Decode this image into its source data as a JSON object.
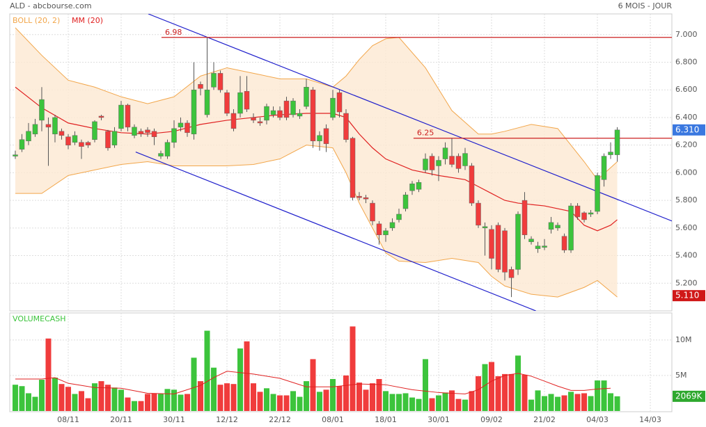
{
  "header": {
    "left": "ALD - abcbourse.com",
    "right": "6 MOIS - JOUR"
  },
  "chart_data": {
    "type": "candlestick",
    "x": [
      0,
      1,
      2,
      3,
      4,
      5,
      6,
      7,
      8,
      9,
      10,
      11,
      12,
      13,
      14,
      15,
      16,
      17,
      18,
      19,
      20,
      21,
      22,
      23,
      24,
      25,
      26,
      27,
      28,
      29,
      30,
      31,
      32,
      33,
      34,
      35,
      36,
      37,
      38,
      39,
      40,
      41,
      42,
      43,
      44,
      45,
      46,
      47,
      48,
      49,
      50,
      51,
      52,
      53,
      54,
      55,
      56,
      57,
      58,
      59,
      60,
      61,
      62,
      63,
      64,
      65,
      66,
      67,
      68,
      69,
      70,
      71,
      72,
      73,
      74,
      75,
      76,
      77,
      78,
      79,
      80,
      81,
      82,
      83,
      84,
      85,
      86,
      87,
      88,
      89,
      90,
      91
    ],
    "open": [
      6.12,
      6.17,
      6.23,
      6.28,
      6.38,
      6.35,
      6.28,
      6.3,
      6.26,
      6.22,
      6.22,
      6.22,
      6.24,
      6.41,
      6.3,
      6.2,
      6.32,
      6.49,
      6.27,
      6.3,
      6.31,
      6.3,
      6.12,
      6.12,
      6.22,
      6.33,
      6.36,
      6.28,
      6.64,
      6.42,
      6.62,
      6.72,
      6.58,
      6.43,
      6.43,
      6.59,
      6.4,
      6.37,
      6.38,
      6.42,
      6.45,
      6.52,
      6.42,
      6.41,
      6.48,
      6.6,
      6.23,
      6.32,
      6.4,
      6.58,
      6.43,
      6.25,
      5.83,
      5.82,
      5.78,
      5.63,
      5.55,
      5.6,
      5.66,
      5.74,
      5.87,
      5.88,
      6.02,
      6.12,
      6.05,
      6.1,
      6.12,
      6.12,
      6.05,
      6.05,
      5.78,
      5.6,
      5.59,
      5.62,
      5.58,
      5.3,
      5.3,
      5.8,
      5.5,
      5.45,
      5.46,
      5.59,
      5.6,
      5.54,
      5.44,
      5.76,
      5.71,
      5.7,
      5.72,
      5.95,
      6.13,
      6.13
    ],
    "high": [
      6.16,
      6.28,
      6.36,
      6.39,
      6.62,
      6.4,
      6.42,
      6.32,
      6.28,
      6.3,
      6.24,
      6.23,
      6.38,
      6.42,
      6.31,
      6.33,
      6.52,
      6.5,
      6.35,
      6.32,
      6.33,
      6.32,
      6.16,
      6.24,
      6.38,
      6.4,
      6.38,
      6.8,
      6.66,
      6.98,
      6.8,
      6.74,
      6.6,
      6.46,
      6.7,
      6.7,
      6.43,
      6.4,
      6.5,
      6.48,
      6.48,
      6.55,
      6.54,
      6.46,
      6.68,
      6.62,
      6.3,
      6.35,
      6.6,
      6.6,
      6.46,
      6.26,
      5.86,
      5.84,
      5.8,
      5.65,
      5.6,
      5.67,
      5.74,
      5.86,
      5.94,
      5.95,
      6.14,
      6.14,
      6.12,
      6.22,
      6.25,
      6.14,
      6.18,
      6.07,
      5.8,
      5.64,
      5.62,
      5.64,
      5.6,
      5.32,
      5.72,
      5.86,
      5.54,
      5.5,
      5.52,
      5.68,
      5.64,
      5.56,
      5.78,
      5.78,
      5.72,
      5.73,
      6.0,
      6.14,
      6.22,
      6.33
    ],
    "low": [
      6.1,
      6.15,
      6.2,
      6.26,
      6.3,
      6.05,
      6.22,
      6.24,
      6.17,
      6.2,
      6.1,
      6.18,
      6.22,
      6.38,
      6.16,
      6.18,
      6.3,
      6.3,
      6.25,
      6.26,
      6.26,
      6.2,
      6.1,
      6.1,
      6.18,
      6.3,
      6.26,
      6.24,
      6.56,
      6.4,
      6.6,
      6.58,
      6.41,
      6.3,
      6.4,
      6.44,
      6.36,
      6.34,
      6.35,
      6.4,
      6.38,
      6.38,
      6.4,
      6.39,
      6.46,
      6.18,
      6.16,
      6.15,
      6.38,
      6.4,
      6.22,
      5.8,
      5.8,
      5.78,
      5.62,
      5.48,
      5.5,
      5.58,
      5.64,
      5.72,
      5.84,
      5.86,
      6.0,
      5.98,
      5.94,
      6.06,
      6.04,
      6.0,
      6.02,
      5.76,
      5.6,
      5.4,
      5.3,
      5.28,
      5.22,
      5.1,
      5.26,
      5.52,
      5.48,
      5.42,
      5.44,
      5.56,
      5.58,
      5.42,
      5.42,
      5.66,
      5.64,
      5.68,
      5.7,
      5.9,
      6.1,
      6.08
    ],
    "close": [
      6.13,
      6.24,
      6.3,
      6.35,
      6.53,
      6.33,
      6.4,
      6.27,
      6.2,
      6.27,
      6.19,
      6.2,
      6.37,
      6.4,
      6.18,
      6.3,
      6.49,
      6.33,
      6.33,
      6.28,
      6.29,
      6.26,
      6.14,
      6.22,
      6.32,
      6.36,
      6.29,
      6.6,
      6.61,
      6.6,
      6.72,
      6.6,
      6.43,
      6.32,
      6.58,
      6.46,
      6.38,
      6.36,
      6.48,
      6.45,
      6.4,
      6.4,
      6.52,
      6.43,
      6.62,
      6.23,
      6.27,
      6.21,
      6.54,
      6.44,
      6.24,
      5.82,
      5.82,
      5.81,
      5.65,
      5.55,
      5.58,
      5.64,
      5.7,
      5.84,
      5.92,
      5.93,
      6.1,
      6.02,
      6.09,
      6.18,
      6.06,
      6.03,
      6.14,
      5.78,
      5.62,
      5.61,
      5.38,
      5.3,
      5.28,
      5.24,
      5.7,
      5.55,
      5.52,
      5.47,
      5.47,
      5.64,
      5.62,
      5.44,
      5.76,
      5.68,
      5.66,
      5.71,
      5.98,
      6.12,
      6.15,
      6.31
    ],
    "up_color": "#3cc43c",
    "down_color": "#f03c3c",
    "xlim": [
      -0.84,
      99.26
    ],
    "xticks": [
      {
        "value": 8,
        "label": "08/11"
      },
      {
        "value": 16,
        "label": "20/11"
      },
      {
        "value": 24,
        "label": "30/11"
      },
      {
        "value": 32,
        "label": "12/12"
      },
      {
        "value": 40,
        "label": "22/12"
      },
      {
        "value": 48,
        "label": "08/01"
      },
      {
        "value": 56,
        "label": "18/01"
      },
      {
        "value": 64,
        "label": "30/01"
      },
      {
        "value": 72,
        "label": "09/02"
      },
      {
        "value": 80,
        "label": "21/02"
      },
      {
        "value": 88,
        "label": "04/03"
      },
      {
        "value": 96,
        "label": "14/03"
      }
    ],
    "ylim": [
      5.0,
      7.15
    ],
    "yticks": [
      {
        "value": 5.2,
        "label": "5.200"
      },
      {
        "value": 5.4,
        "label": "5.400"
      },
      {
        "value": 5.6,
        "label": "5.600"
      },
      {
        "value": 5.8,
        "label": "5.800"
      },
      {
        "value": 6.0,
        "label": "6.000"
      },
      {
        "value": 6.2,
        "label": "6.200"
      },
      {
        "value": 6.4,
        "label": "6.400"
      },
      {
        "value": 6.6,
        "label": "6.600"
      },
      {
        "value": 6.8,
        "label": "6.800"
      },
      {
        "value": 7.0,
        "label": "7.000"
      }
    ],
    "grid": true,
    "band": {
      "name": "BOLL (20, 2)",
      "color": "#f2a64a",
      "fill": "#fde8d2",
      "x": [
        0,
        4,
        8,
        12,
        16,
        20,
        24,
        28,
        32,
        36,
        40,
        44,
        48,
        50,
        52,
        54,
        56,
        58,
        62,
        66,
        70,
        72,
        74,
        78,
        82,
        86,
        88,
        91
      ],
      "upper": [
        7.05,
        6.85,
        6.67,
        6.62,
        6.55,
        6.5,
        6.55,
        6.7,
        6.76,
        6.72,
        6.68,
        6.68,
        6.62,
        6.7,
        6.82,
        6.92,
        6.97,
        6.98,
        6.76,
        6.45,
        6.28,
        6.28,
        6.3,
        6.35,
        6.32,
        6.08,
        5.95,
        6.08
      ],
      "lower": [
        5.85,
        5.85,
        5.98,
        6.02,
        6.06,
        6.08,
        6.05,
        6.05,
        6.05,
        6.06,
        6.1,
        6.2,
        6.18,
        6.0,
        5.78,
        5.6,
        5.42,
        5.36,
        5.35,
        5.38,
        5.35,
        5.25,
        5.18,
        5.12,
        5.1,
        5.17,
        5.22,
        5.1
      ]
    },
    "series": [
      {
        "name": "MM (20)",
        "color": "#e02020",
        "x": [
          0,
          4,
          8,
          12,
          16,
          20,
          24,
          28,
          32,
          36,
          40,
          44,
          48,
          50,
          52,
          54,
          56,
          60,
          64,
          68,
          70,
          72,
          74,
          76,
          80,
          84,
          86,
          88,
          90,
          91
        ],
        "values": [
          6.62,
          6.47,
          6.36,
          6.32,
          6.29,
          6.28,
          6.3,
          6.35,
          6.38,
          6.4,
          6.42,
          6.43,
          6.43,
          6.4,
          6.28,
          6.18,
          6.1,
          6.02,
          5.98,
          5.95,
          5.9,
          5.85,
          5.8,
          5.78,
          5.76,
          5.72,
          5.62,
          5.58,
          5.62,
          5.66
        ]
      }
    ],
    "trendlines": [
      {
        "color": "#2020cc",
        "x": [
          20.1,
          99.3
        ],
        "values": [
          7.15,
          5.65
        ]
      },
      {
        "color": "#2020cc",
        "x": [
          18.2,
          78.7
        ],
        "values": [
          6.15,
          5.0
        ]
      }
    ],
    "levels": [
      {
        "color": "#cc2020",
        "x": 22.1,
        "value": 6.98
      },
      {
        "color": "#cc2020",
        "x": 60.2,
        "value": 6.25
      }
    ],
    "markers": [
      {
        "value": 6.31,
        "value_label": "6.310",
        "color": "#3a78e0"
      },
      {
        "value": 5.11,
        "value_label": "5.110",
        "color": "#d01818"
      }
    ],
    "volume": {
      "label": "VOLUMECASH",
      "label_color": "#3cc43c",
      "values": [
        3.7,
        3.5,
        2.5,
        2.0,
        4.4,
        10.2,
        4.7,
        3.8,
        3.4,
        2.4,
        2.8,
        1.8,
        3.9,
        4.2,
        3.7,
        3.3,
        3.0,
        1.9,
        1.4,
        1.4,
        2.4,
        2.5,
        2.4,
        3.1,
        3.0,
        2.3,
        2.4,
        7.5,
        4.2,
        11.3,
        6.1,
        3.7,
        3.9,
        3.8,
        8.8,
        9.8,
        3.9,
        2.7,
        3.2,
        2.4,
        2.2,
        2.2,
        2.8,
        2.0,
        4.2,
        7.3,
        2.7,
        3.0,
        4.5,
        3.5,
        5.0,
        11.9,
        4.0,
        3.0,
        3.9,
        4.5,
        2.8,
        2.4,
        2.4,
        2.5,
        1.9,
        1.7,
        7.3,
        1.8,
        2.2,
        2.6,
        2.9,
        1.7,
        1.6,
        2.8,
        4.9,
        6.6,
        6.9,
        4.9,
        5.2,
        5.2,
        7.8,
        5.1,
        1.6,
        2.9,
        2.1,
        2.4,
        2.0,
        2.2,
        2.7,
        2.4,
        2.5,
        2.1,
        4.3,
        4.3,
        2.5,
        2.069
      ],
      "ylim": [
        0,
        13.8
      ],
      "yticks": [
        {
          "value": 5,
          "label": "5M"
        },
        {
          "value": 10,
          "label": "10M"
        }
      ],
      "ma": {
        "color": "#e02020",
        "x": [
          0,
          4,
          6,
          8,
          12,
          16,
          20,
          24,
          28,
          30,
          32,
          36,
          40,
          44,
          48,
          52,
          56,
          60,
          64,
          68,
          70,
          72,
          74,
          76,
          78,
          80,
          82,
          84,
          86,
          88,
          90
        ],
        "values": [
          4.5,
          4.5,
          4.7,
          3.9,
          3.3,
          3.2,
          2.5,
          2.4,
          3.6,
          4.7,
          5.6,
          5.2,
          4.6,
          3.4,
          3.4,
          3.8,
          3.7,
          3.0,
          2.6,
          2.4,
          3.0,
          4.2,
          5.0,
          5.3,
          4.9,
          4.2,
          3.5,
          2.9,
          2.9,
          3.1,
          3.2
        ]
      },
      "marker": {
        "value": 2.069,
        "value_label": "2069K",
        "color": "#2ea82e"
      }
    }
  }
}
